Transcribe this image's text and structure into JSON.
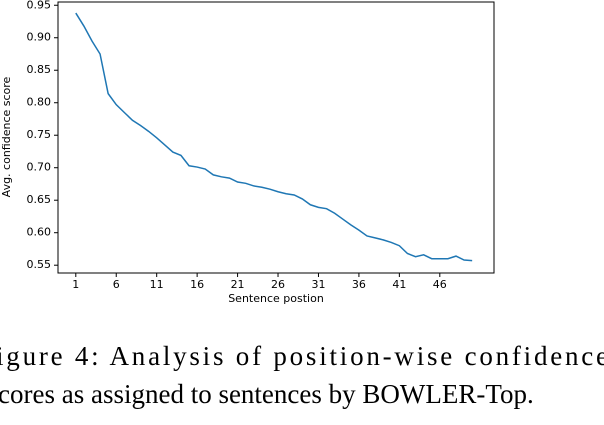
{
  "chart_data": {
    "type": "line",
    "xlabel": "Sentence postion",
    "ylabel": "Avg. confidence score",
    "x": [
      1,
      2,
      3,
      4,
      5,
      6,
      7,
      8,
      9,
      10,
      11,
      12,
      13,
      14,
      15,
      16,
      17,
      18,
      19,
      20,
      21,
      22,
      23,
      24,
      25,
      26,
      27,
      28,
      29,
      30,
      31,
      32,
      33,
      34,
      35,
      36,
      37,
      38,
      39,
      40,
      41,
      42,
      43,
      44,
      45,
      46,
      47,
      48,
      49,
      50
    ],
    "series": [
      {
        "color": "#1f77b4",
        "values": [
          0.938,
          0.918,
          0.895,
          0.875,
          0.814,
          0.797,
          0.785,
          0.773,
          0.765,
          0.756,
          0.746,
          0.735,
          0.724,
          0.719,
          0.703,
          0.701,
          0.698,
          0.689,
          0.686,
          0.684,
          0.678,
          0.676,
          0.672,
          0.67,
          0.667,
          0.663,
          0.66,
          0.658,
          0.652,
          0.643,
          0.639,
          0.637,
          0.63,
          0.621,
          0.612,
          0.604,
          0.595,
          0.592,
          0.589,
          0.585,
          0.58,
          0.568,
          0.563,
          0.566,
          0.56,
          0.56,
          0.56,
          0.564,
          0.558,
          0.557
        ]
      }
    ],
    "xlim": [
      -1.2,
      52.7
    ],
    "xticks": [
      1,
      6,
      11,
      16,
      21,
      26,
      31,
      36,
      41,
      46
    ],
    "ylim": [
      0.538,
      0.955
    ],
    "yticks": [
      0.55,
      {
        "value": 0.6,
        "label": "0.60"
      },
      0.65,
      {
        "value": 0.7,
        "label": "0.70"
      },
      0.75,
      {
        "value": 0.8,
        "label": "0.80"
      },
      0.85,
      {
        "value": 0.9,
        "label": "0.90"
      },
      0.95
    ],
    "grid": false
  },
  "caption": {
    "lines": [
      "igure 4:  Analysis of position-wise confidence",
      "cores as assigned to sentences by BOWLER-Top."
    ]
  }
}
